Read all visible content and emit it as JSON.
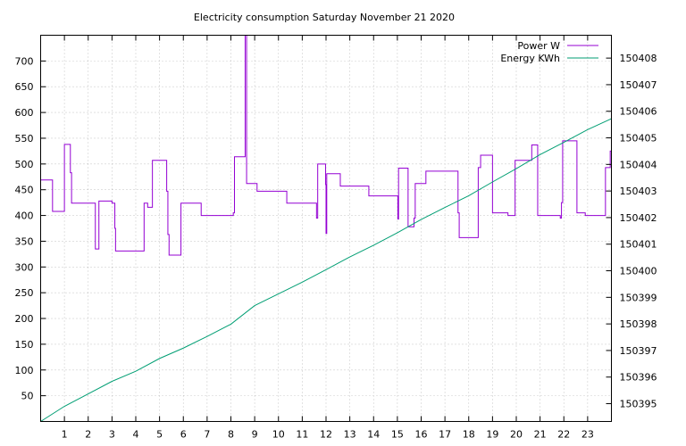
{
  "chart_data": {
    "type": "line",
    "title": "Electricity consumption Saturday November 21 2020",
    "xlabel": "",
    "ylabel": "",
    "y2label": "",
    "x_ticks": [
      "1",
      "2",
      "3",
      "4",
      "5",
      "6",
      "7",
      "8",
      "9",
      "10",
      "11",
      "12",
      "13",
      "14",
      "15",
      "16",
      "17",
      "18",
      "19",
      "20",
      "21",
      "22",
      "23"
    ],
    "xlim": [
      0,
      24
    ],
    "ylim": [
      0,
      750
    ],
    "y_ticks": [
      "50",
      "100",
      "150",
      "200",
      "250",
      "300",
      "350",
      "400",
      "450",
      "500",
      "550",
      "600",
      "650",
      "700"
    ],
    "y2lim": [
      150394.33,
      150408.86
    ],
    "y2_ticks": [
      "150395",
      "150396",
      "150397",
      "150398",
      "150399",
      "150400",
      "150401",
      "150402",
      "150403",
      "150404",
      "150405",
      "150406",
      "150407",
      "150408"
    ],
    "grid": true,
    "legend_position": "top-right",
    "series": [
      {
        "name": "Power W",
        "axis": "left",
        "color": "#9400d3",
        "step": true,
        "points": [
          [
            0,
            469
          ],
          [
            0.5,
            408
          ],
          [
            0.98,
            408
          ],
          [
            1.0,
            538
          ],
          [
            1.23,
            538
          ],
          [
            1.25,
            483
          ],
          [
            1.3,
            424
          ],
          [
            2.25,
            424
          ],
          [
            2.3,
            335
          ],
          [
            2.4,
            335
          ],
          [
            2.45,
            428
          ],
          [
            2.95,
            428
          ],
          [
            3.0,
            424
          ],
          [
            3.1,
            424
          ],
          [
            3.12,
            375
          ],
          [
            3.15,
            331
          ],
          [
            4.3,
            331
          ],
          [
            4.35,
            424
          ],
          [
            4.45,
            424
          ],
          [
            4.5,
            416
          ],
          [
            4.65,
            416
          ],
          [
            4.7,
            507
          ],
          [
            5.2,
            507
          ],
          [
            5.3,
            447
          ],
          [
            5.35,
            363
          ],
          [
            5.4,
            323
          ],
          [
            5.85,
            323
          ],
          [
            5.9,
            424
          ],
          [
            6.7,
            424
          ],
          [
            6.75,
            400
          ],
          [
            8.0,
            400
          ],
          [
            8.1,
            405
          ],
          [
            8.15,
            514
          ],
          [
            8.55,
            514
          ],
          [
            8.6,
            750
          ],
          [
            8.62,
            750
          ],
          [
            8.66,
            462
          ],
          [
            9.0,
            462
          ],
          [
            9.1,
            447
          ],
          [
            10.3,
            447
          ],
          [
            10.35,
            424
          ],
          [
            11.55,
            424
          ],
          [
            11.6,
            395
          ],
          [
            11.65,
            500
          ],
          [
            11.95,
            500
          ],
          [
            11.98,
            460
          ],
          [
            12.0,
            365
          ],
          [
            12.03,
            481
          ],
          [
            12.55,
            481
          ],
          [
            12.6,
            457
          ],
          [
            13.75,
            457
          ],
          [
            13.8,
            438
          ],
          [
            15.0,
            438
          ],
          [
            15.02,
            393
          ],
          [
            15.05,
            492
          ],
          [
            15.4,
            492
          ],
          [
            15.45,
            378
          ],
          [
            15.65,
            378
          ],
          [
            15.7,
            395
          ],
          [
            15.75,
            462
          ],
          [
            16.15,
            462
          ],
          [
            16.2,
            486
          ],
          [
            17.2,
            486
          ],
          [
            17.5,
            486
          ],
          [
            17.55,
            405
          ],
          [
            17.6,
            357
          ],
          [
            18.35,
            357
          ],
          [
            18.4,
            493
          ],
          [
            18.5,
            517
          ],
          [
            18.95,
            517
          ],
          [
            19.0,
            405
          ],
          [
            19.6,
            405
          ],
          [
            19.65,
            400
          ],
          [
            19.9,
            400
          ],
          [
            19.95,
            507
          ],
          [
            20.6,
            507
          ],
          [
            20.65,
            537
          ],
          [
            20.85,
            537
          ],
          [
            20.9,
            400
          ],
          [
            21.8,
            400
          ],
          [
            21.85,
            395
          ],
          [
            21.9,
            425
          ],
          [
            21.95,
            545
          ],
          [
            22.5,
            545
          ],
          [
            22.55,
            405
          ],
          [
            22.85,
            405
          ],
          [
            22.9,
            400
          ],
          [
            23.7,
            400
          ],
          [
            23.75,
            493
          ],
          [
            23.9,
            493
          ],
          [
            23.95,
            525
          ],
          [
            24.0,
            525
          ]
        ]
      },
      {
        "name": "Energy KWh",
        "axis": "right",
        "color": "#009e73",
        "step": false,
        "points": [
          [
            0,
            150394.33
          ],
          [
            1,
            150394.9
          ],
          [
            2,
            150395.37
          ],
          [
            3,
            150395.84
          ],
          [
            4,
            150396.22
          ],
          [
            5,
            150396.7
          ],
          [
            6,
            150397.09
          ],
          [
            7,
            150397.53
          ],
          [
            8,
            150397.99
          ],
          [
            9,
            150398.69
          ],
          [
            10,
            150399.13
          ],
          [
            11,
            150399.57
          ],
          [
            12,
            150400.04
          ],
          [
            13,
            150400.52
          ],
          [
            14,
            150400.96
          ],
          [
            15,
            150401.43
          ],
          [
            16,
            150401.93
          ],
          [
            17,
            150402.38
          ],
          [
            18,
            150402.82
          ],
          [
            19,
            150403.34
          ],
          [
            20,
            150403.84
          ],
          [
            21,
            150404.37
          ],
          [
            22,
            150404.83
          ],
          [
            23,
            150405.31
          ],
          [
            24,
            150405.72
          ]
        ]
      }
    ]
  }
}
